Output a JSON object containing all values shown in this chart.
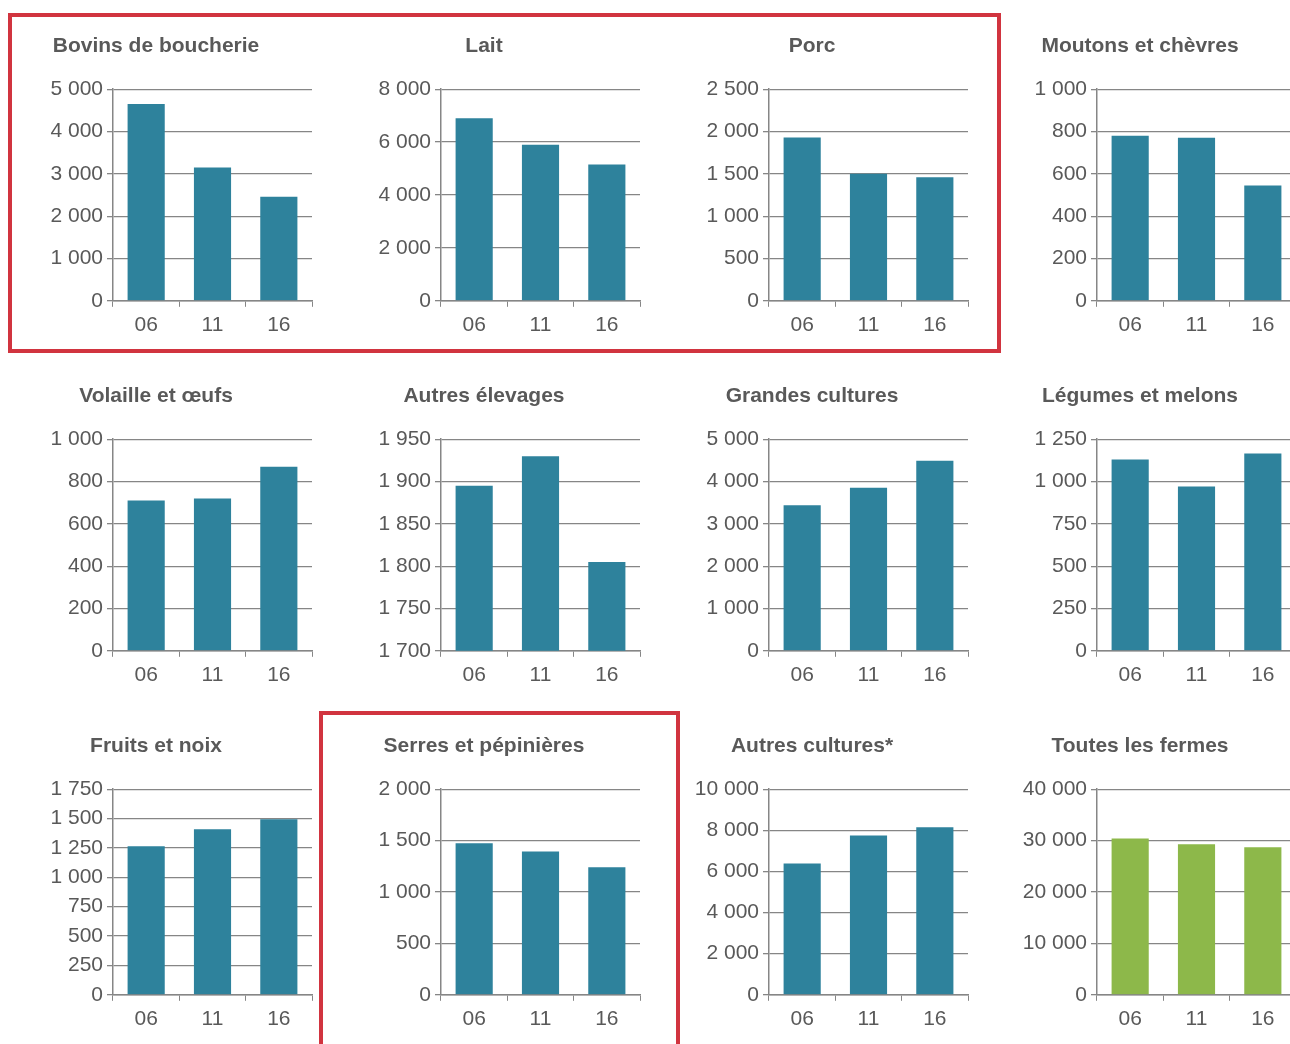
{
  "chart_data": [
    {
      "type": "bar",
      "title": "Bovins de boucherie",
      "categories": [
        "06",
        "11",
        "16"
      ],
      "values": [
        4650,
        3150,
        2460
      ],
      "color": "#2e829c",
      "ylim": [
        0,
        5000
      ],
      "yticks": [
        0,
        {
          "value": 1000,
          "label": "1 000"
        },
        {
          "value": 2000,
          "label": "2 000"
        },
        {
          "value": 3000,
          "label": "3 000"
        },
        {
          "value": 4000,
          "label": "4 000"
        },
        {
          "value": 5000,
          "label": "5 000"
        }
      ],
      "grid": "y",
      "legend": false
    },
    {
      "type": "bar",
      "title": "Lait",
      "categories": [
        "06",
        "11",
        "16"
      ],
      "values": [
        6900,
        5900,
        5150
      ],
      "color": "#2e829c",
      "ylim": [
        0,
        8000
      ],
      "yticks": [
        0,
        {
          "value": 2000,
          "label": "2 000"
        },
        {
          "value": 4000,
          "label": "4 000"
        },
        {
          "value": 6000,
          "label": "6 000"
        },
        {
          "value": 8000,
          "label": "8 000"
        }
      ],
      "grid": "y",
      "legend": false
    },
    {
      "type": "bar",
      "title": "Porc",
      "categories": [
        "06",
        "11",
        "16"
      ],
      "values": [
        1930,
        1500,
        1460
      ],
      "color": "#2e829c",
      "ylim": [
        0,
        2500
      ],
      "yticks": [
        0,
        500,
        {
          "value": 1000,
          "label": "1 000"
        },
        {
          "value": 1500,
          "label": "1 500"
        },
        {
          "value": 2000,
          "label": "2 000"
        },
        {
          "value": 2500,
          "label": "2 500"
        }
      ],
      "grid": "y",
      "legend": false
    },
    {
      "type": "bar",
      "title": "Moutons et chèvres",
      "categories": [
        "06",
        "11",
        "16"
      ],
      "values": [
        780,
        770,
        545
      ],
      "color": "#2e829c",
      "ylim": [
        0,
        1000
      ],
      "yticks": [
        0,
        200,
        400,
        600,
        800,
        {
          "value": 1000,
          "label": "1 000"
        }
      ],
      "grid": "y",
      "legend": false
    },
    {
      "type": "bar",
      "title": "Volaille et œufs",
      "categories": [
        "06",
        "11",
        "16"
      ],
      "values": [
        710,
        720,
        870
      ],
      "color": "#2e829c",
      "ylim": [
        0,
        1000
      ],
      "yticks": [
        0,
        200,
        400,
        600,
        800,
        {
          "value": 1000,
          "label": "1 000"
        }
      ],
      "grid": "y",
      "legend": false
    },
    {
      "type": "bar",
      "title": "Autres élevages",
      "categories": [
        "06",
        "11",
        "16"
      ],
      "values": [
        1895,
        1930,
        1805
      ],
      "color": "#2e829c",
      "ylim": [
        1700,
        1950
      ],
      "yticks": [
        {
          "value": 1700,
          "label": "1 700"
        },
        {
          "value": 1750,
          "label": "1 750"
        },
        {
          "value": 1800,
          "label": "1 800"
        },
        {
          "value": 1850,
          "label": "1 850"
        },
        {
          "value": 1900,
          "label": "1 900"
        },
        {
          "value": 1950,
          "label": "1 950"
        }
      ],
      "grid": "y",
      "legend": false
    },
    {
      "type": "bar",
      "title": "Grandes cultures",
      "categories": [
        "06",
        "11",
        "16"
      ],
      "values": [
        3440,
        3850,
        4490
      ],
      "color": "#2e829c",
      "ylim": [
        0,
        5000
      ],
      "yticks": [
        0,
        {
          "value": 1000,
          "label": "1 000"
        },
        {
          "value": 2000,
          "label": "2 000"
        },
        {
          "value": 3000,
          "label": "3 000"
        },
        {
          "value": 4000,
          "label": "4 000"
        },
        {
          "value": 5000,
          "label": "5 000"
        }
      ],
      "grid": "y",
      "legend": false
    },
    {
      "type": "bar",
      "title": "Légumes et melons",
      "categories": [
        "06",
        "11",
        "16"
      ],
      "values": [
        1130,
        970,
        1165
      ],
      "color": "#2e829c",
      "ylim": [
        0,
        1250
      ],
      "yticks": [
        0,
        250,
        500,
        750,
        {
          "value": 1000,
          "label": "1 000"
        },
        {
          "value": 1250,
          "label": "1 250"
        }
      ],
      "grid": "y",
      "legend": false
    },
    {
      "type": "bar",
      "title": "Fruits et noix",
      "categories": [
        "06",
        "11",
        "16"
      ],
      "values": [
        1265,
        1410,
        1495
      ],
      "color": "#2e829c",
      "ylim": [
        0,
        1750
      ],
      "yticks": [
        0,
        250,
        500,
        750,
        {
          "value": 1000,
          "label": "1 000"
        },
        {
          "value": 1250,
          "label": "1 250"
        },
        {
          "value": 1500,
          "label": "1 500"
        },
        {
          "value": 1750,
          "label": "1 750"
        }
      ],
      "grid": "y",
      "legend": false
    },
    {
      "type": "bar",
      "title": "Serres et pépinières",
      "categories": [
        "06",
        "11",
        "16"
      ],
      "values": [
        1475,
        1395,
        1240
      ],
      "color": "#2e829c",
      "ylim": [
        0,
        2000
      ],
      "yticks": [
        0,
        500,
        {
          "value": 1000,
          "label": "1 000"
        },
        {
          "value": 1500,
          "label": "1 500"
        },
        {
          "value": 2000,
          "label": "2 000"
        }
      ],
      "grid": "y",
      "legend": false
    },
    {
      "type": "bar",
      "title": "Autres cultures*",
      "categories": [
        "06",
        "11",
        "16"
      ],
      "values": [
        6390,
        7750,
        8150
      ],
      "color": "#2e829c",
      "ylim": [
        0,
        10000
      ],
      "yticks": [
        0,
        {
          "value": 2000,
          "label": "2 000"
        },
        {
          "value": 4000,
          "label": "4 000"
        },
        {
          "value": 6000,
          "label": "6 000"
        },
        {
          "value": 8000,
          "label": "8 000"
        },
        {
          "value": 10000,
          "label": "10 000"
        }
      ],
      "grid": "y",
      "legend": false
    },
    {
      "type": "bar",
      "title": "Toutes les fermes",
      "categories": [
        "06",
        "11",
        "16"
      ],
      "values": [
        30400,
        29300,
        28700
      ],
      "color": "#8db84a",
      "ylim": [
        0,
        40000
      ],
      "yticks": [
        0,
        {
          "value": 10000,
          "label": "10 000"
        },
        {
          "value": 20000,
          "label": "20 000"
        },
        {
          "value": 30000,
          "label": "30 000"
        },
        {
          "value": 40000,
          "label": "40 000"
        }
      ],
      "grid": "y",
      "legend": false
    }
  ]
}
